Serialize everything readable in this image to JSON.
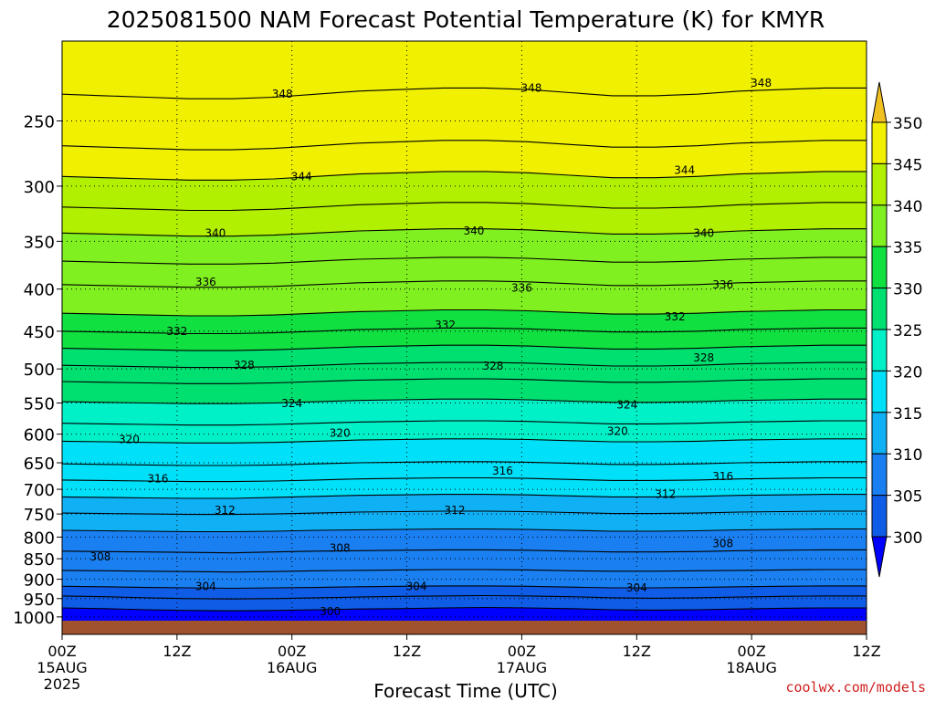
{
  "chart_data": {
    "type": "contour",
    "title": "2025081500 NAM Forecast Potential Temperature (K) for KMYR",
    "xlabel": "Forecast Time (UTC)",
    "ylabel": "",
    "y_scale": "log",
    "y_inverted": true,
    "ylim": [
      200,
      1050
    ],
    "y_ticks": [
      250,
      300,
      350,
      400,
      450,
      500,
      550,
      600,
      650,
      700,
      750,
      800,
      850,
      900,
      950,
      1000
    ],
    "x_ticks": [
      {
        "hour": 0,
        "label": "00Z",
        "sub": "15AUG",
        "sub2": "2025"
      },
      {
        "hour": 12,
        "label": "12Z",
        "sub": "",
        "sub2": ""
      },
      {
        "hour": 24,
        "label": "00Z",
        "sub": "16AUG",
        "sub2": ""
      },
      {
        "hour": 36,
        "label": "12Z",
        "sub": "",
        "sub2": ""
      },
      {
        "hour": 48,
        "label": "00Z",
        "sub": "17AUG",
        "sub2": ""
      },
      {
        "hour": 60,
        "label": "12Z",
        "sub": "",
        "sub2": ""
      },
      {
        "hour": 72,
        "label": "00Z",
        "sub": "18AUG",
        "sub2": ""
      },
      {
        "hour": 84,
        "label": "12Z",
        "sub": "",
        "sub2": ""
      }
    ],
    "xlim": [
      0,
      84
    ],
    "grid": true,
    "colorbar": {
      "levels": [
        300,
        305,
        310,
        315,
        320,
        325,
        330,
        335,
        340,
        345,
        350
      ],
      "colors": [
        "#0000ff",
        "#0f5ce6",
        "#1a7ff0",
        "#10b0f5",
        "#00e0f8",
        "#00f0c8",
        "#00e070",
        "#10e040",
        "#80f020",
        "#b0f000",
        "#f0f000",
        "#f0c020"
      ],
      "position": "right"
    },
    "contour_interval": 2,
    "contours": [
      {
        "theta": 300,
        "p": [
          975,
          977,
          980,
          982,
          983,
          982,
          980,
          978,
          977,
          975,
          974,
          975,
          977,
          980,
          981,
          980,
          978,
          976,
          975,
          975
        ]
      },
      {
        "theta": 302,
        "p": [
          943,
          945,
          948,
          950,
          951,
          950,
          948,
          946,
          944,
          943,
          942,
          943,
          945,
          948,
          949,
          948,
          946,
          944,
          943,
          943
        ]
      },
      {
        "theta": 304,
        "p": [
          918,
          919,
          921,
          922,
          923,
          922,
          921,
          919,
          918,
          917,
          917,
          918,
          920,
          922,
          922,
          921,
          919,
          918,
          917,
          917
        ]
      },
      {
        "theta": 306,
        "p": [
          878,
          879,
          880,
          881,
          882,
          881,
          879,
          878,
          877,
          876,
          876,
          877,
          879,
          880,
          880,
          879,
          878,
          877,
          876,
          876
        ]
      },
      {
        "theta": 308,
        "p": [
          832,
          833,
          834,
          835,
          836,
          834,
          832,
          831,
          830,
          829,
          829,
          830,
          832,
          834,
          834,
          833,
          831,
          830,
          829,
          829
        ]
      },
      {
        "theta": 310,
        "p": [
          785,
          786,
          787,
          788,
          788,
          787,
          785,
          784,
          783,
          782,
          782,
          783,
          785,
          787,
          787,
          786,
          784,
          783,
          782,
          782
        ]
      },
      {
        "theta": 312,
        "p": [
          748,
          749,
          750,
          751,
          751,
          750,
          748,
          746,
          745,
          744,
          744,
          745,
          747,
          749,
          749,
          748,
          746,
          745,
          744,
          744
        ]
      },
      {
        "theta": 314,
        "p": [
          715,
          716,
          717,
          718,
          718,
          716,
          714,
          712,
          711,
          710,
          710,
          711,
          713,
          715,
          715,
          714,
          712,
          711,
          710,
          710
        ]
      },
      {
        "theta": 316,
        "p": [
          682,
          683,
          684,
          685,
          685,
          684,
          682,
          680,
          679,
          678,
          678,
          679,
          681,
          683,
          683,
          682,
          680,
          679,
          678,
          678
        ]
      },
      {
        "theta": 318,
        "p": [
          652,
          653,
          654,
          655,
          655,
          654,
          652,
          650,
          649,
          648,
          648,
          649,
          651,
          653,
          653,
          652,
          650,
          649,
          648,
          648
        ]
      },
      {
        "theta": 320,
        "p": [
          612,
          613,
          614,
          615,
          615,
          614,
          612,
          610,
          609,
          608,
          608,
          609,
          611,
          613,
          613,
          612,
          610,
          609,
          608,
          608
        ]
      },
      {
        "theta": 322,
        "p": [
          582,
          583,
          584,
          585,
          585,
          584,
          582,
          580,
          579,
          578,
          578,
          579,
          581,
          583,
          583,
          582,
          580,
          579,
          578,
          578
        ]
      },
      {
        "theta": 324,
        "p": [
          548,
          549,
          550,
          551,
          551,
          550,
          548,
          546,
          545,
          544,
          544,
          545,
          547,
          549,
          549,
          548,
          546,
          545,
          544,
          544
        ]
      },
      {
        "theta": 326,
        "p": [
          518,
          519,
          520,
          521,
          521,
          520,
          518,
          516,
          515,
          514,
          514,
          515,
          517,
          519,
          519,
          518,
          516,
          515,
          514,
          514
        ]
      },
      {
        "theta": 328,
        "p": [
          495,
          496,
          497,
          498,
          498,
          497,
          495,
          493,
          492,
          491,
          491,
          492,
          494,
          496,
          496,
          495,
          493,
          492,
          491,
          491
        ]
      },
      {
        "theta": 330,
        "p": [
          472,
          473,
          474,
          475,
          475,
          474,
          472,
          470,
          469,
          468,
          468,
          469,
          471,
          473,
          473,
          472,
          470,
          469,
          468,
          468
        ]
      },
      {
        "theta": 332,
        "p": [
          450,
          451,
          452,
          453,
          453,
          452,
          450,
          448,
          447,
          446,
          446,
          447,
          449,
          451,
          451,
          450,
          448,
          447,
          446,
          446
        ]
      },
      {
        "theta": 334,
        "p": [
          428,
          429,
          430,
          431,
          431,
          430,
          428,
          426,
          425,
          424,
          424,
          425,
          427,
          429,
          429,
          428,
          426,
          425,
          424,
          424
        ]
      },
      {
        "theta": 336,
        "p": [
          395,
          396,
          397,
          398,
          398,
          397,
          395,
          393,
          392,
          391,
          391,
          392,
          394,
          396,
          396,
          395,
          393,
          392,
          391,
          391
        ]
      },
      {
        "theta": 338,
        "p": [
          370,
          371,
          372,
          373,
          373,
          372,
          370,
          368,
          367,
          366,
          366,
          367,
          369,
          371,
          371,
          370,
          368,
          367,
          366,
          366
        ]
      },
      {
        "theta": 340,
        "p": [
          342,
          343,
          344,
          345,
          345,
          344,
          342,
          340,
          339,
          338,
          338,
          339,
          341,
          343,
          343,
          342,
          340,
          339,
          338,
          338
        ]
      },
      {
        "theta": 342,
        "p": [
          318,
          319,
          320,
          321,
          321,
          320,
          318,
          316,
          315,
          314,
          314,
          315,
          317,
          319,
          319,
          318,
          316,
          315,
          314,
          314
        ]
      },
      {
        "theta": 344,
        "p": [
          292,
          293,
          294,
          295,
          295,
          294,
          292,
          290,
          289,
          288,
          288,
          289,
          291,
          293,
          293,
          292,
          290,
          289,
          288,
          288
        ]
      },
      {
        "theta": 346,
        "p": [
          268,
          269,
          270,
          271,
          271,
          270,
          268,
          266,
          265,
          264,
          264,
          265,
          267,
          269,
          269,
          268,
          266,
          265,
          264,
          264
        ]
      },
      {
        "theta": 348,
        "p": [
          232,
          233,
          234,
          235,
          235,
          234,
          232,
          230,
          229,
          228,
          228,
          229,
          231,
          233,
          233,
          232,
          230,
          229,
          228,
          228
        ]
      }
    ],
    "contour_labels": [
      {
        "text": "348",
        "hour": 23,
        "p": 232
      },
      {
        "text": "348",
        "hour": 49,
        "p": 228
      },
      {
        "text": "348",
        "hour": 73,
        "p": 225
      },
      {
        "text": "344",
        "hour": 25,
        "p": 292
      },
      {
        "text": "344",
        "hour": 65,
        "p": 287
      },
      {
        "text": "340",
        "hour": 16,
        "p": 342
      },
      {
        "text": "340",
        "hour": 43,
        "p": 340
      },
      {
        "text": "340",
        "hour": 67,
        "p": 342
      },
      {
        "text": "336",
        "hour": 15,
        "p": 392
      },
      {
        "text": "336",
        "hour": 48,
        "p": 399
      },
      {
        "text": "336",
        "hour": 69,
        "p": 395
      },
      {
        "text": "332",
        "hour": 12,
        "p": 450
      },
      {
        "text": "332",
        "hour": 40,
        "p": 442
      },
      {
        "text": "332",
        "hour": 64,
        "p": 432
      },
      {
        "text": "328",
        "hour": 19,
        "p": 495
      },
      {
        "text": "328",
        "hour": 45,
        "p": 496
      },
      {
        "text": "328",
        "hour": 67,
        "p": 485
      },
      {
        "text": "324",
        "hour": 24,
        "p": 551
      },
      {
        "text": "324",
        "hour": 59,
        "p": 553
      },
      {
        "text": "320",
        "hour": 7,
        "p": 609
      },
      {
        "text": "320",
        "hour": 29,
        "p": 598
      },
      {
        "text": "320",
        "hour": 58,
        "p": 595
      },
      {
        "text": "316",
        "hour": 10,
        "p": 680
      },
      {
        "text": "316",
        "hour": 46,
        "p": 665
      },
      {
        "text": "316",
        "hour": 69,
        "p": 675
      },
      {
        "text": "312",
        "hour": 17,
        "p": 742
      },
      {
        "text": "312",
        "hour": 41,
        "p": 742
      },
      {
        "text": "312",
        "hour": 63,
        "p": 710
      },
      {
        "text": "308",
        "hour": 4,
        "p": 845
      },
      {
        "text": "308",
        "hour": 29,
        "p": 825
      },
      {
        "text": "308",
        "hour": 69,
        "p": 815
      },
      {
        "text": "304",
        "hour": 15,
        "p": 918
      },
      {
        "text": "304",
        "hour": 37,
        "p": 918
      },
      {
        "text": "304",
        "hour": 60,
        "p": 922
      },
      {
        "text": "300",
        "hour": 28,
        "p": 985
      }
    ]
  },
  "credit": "coolwx.com/models"
}
